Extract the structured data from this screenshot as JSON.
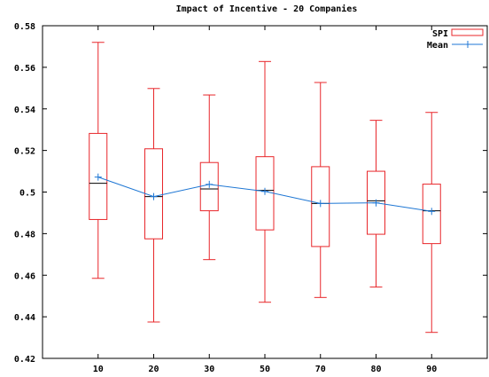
{
  "chart_data": {
    "type": "boxplot",
    "title": "Impact of Incentive - 20 Companies",
    "xlabel": "",
    "ylabel": "",
    "categories": [
      "10",
      "20",
      "30",
      "50",
      "70",
      "80",
      "90"
    ],
    "ylim": [
      0.42,
      0.58
    ],
    "yticks": [
      "0.42",
      "0.44",
      "0.46",
      "0.48",
      "0.5",
      "0.52",
      "0.54",
      "0.56",
      "0.58"
    ],
    "grid": false,
    "legend_position": "top-right",
    "series": [
      {
        "name": "SPI",
        "kind": "box",
        "color": "#e8262a",
        "boxes": [
          {
            "min": 0.4585,
            "q1": 0.4868,
            "median": 0.5042,
            "q3": 0.5282,
            "max": 0.572
          },
          {
            "min": 0.4375,
            "q1": 0.4775,
            "median": 0.4978,
            "q3": 0.5208,
            "max": 0.5498
          },
          {
            "min": 0.4675,
            "q1": 0.491,
            "median": 0.5015,
            "q3": 0.5142,
            "max": 0.5467
          },
          {
            "min": 0.447,
            "q1": 0.4818,
            "median": 0.5008,
            "q3": 0.517,
            "max": 0.5628
          },
          {
            "min": 0.4493,
            "q1": 0.4738,
            "median": 0.4945,
            "q3": 0.5122,
            "max": 0.5527
          },
          {
            "min": 0.4543,
            "q1": 0.4797,
            "median": 0.4958,
            "q3": 0.51,
            "max": 0.5345
          },
          {
            "min": 0.4325,
            "q1": 0.4752,
            "median": 0.491,
            "q3": 0.5038,
            "max": 0.5383
          }
        ]
      },
      {
        "name": "Mean",
        "kind": "line",
        "color": "#1f77d4",
        "values": [
          0.5072,
          0.4978,
          0.5037,
          0.5003,
          0.4945,
          0.4948,
          0.4907
        ]
      }
    ]
  }
}
